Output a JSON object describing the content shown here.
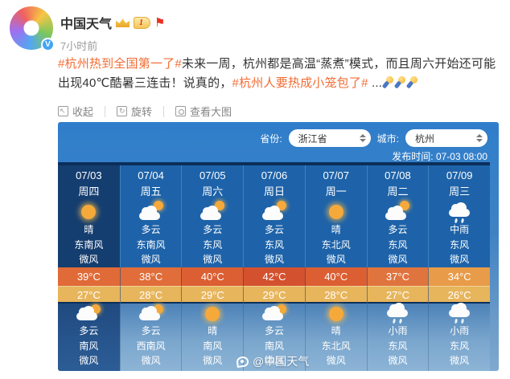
{
  "header": {
    "username": "中国天气",
    "vip_level": "1",
    "verified_mark": "V",
    "time": "7小时前"
  },
  "post": {
    "segments": [
      {
        "type": "link",
        "text": "#杭州热到全国第一了#"
      },
      {
        "type": "text",
        "text": "未来一周，杭州都是高温“蒸煮”模式，而且周六开始还可能出现40℃酷暑三连击！说真的，"
      },
      {
        "type": "link",
        "text": "#杭州人要热成小笼包了#"
      },
      {
        "type": "text",
        "text": " ..."
      }
    ],
    "emoji_icons": [
      "mic-emoji",
      "mic-emoji",
      "mic-emoji"
    ]
  },
  "toolbar": {
    "collapse": "收起",
    "rotate": "旋转",
    "view_large": "查看大图"
  },
  "weather_card": {
    "province_label": "省份:",
    "province_value": "浙江省",
    "city_label": "城市:",
    "city_value": "杭州",
    "publish_label": "发布时间:",
    "publish_time": "07-03 08:00",
    "watermark": "@中国天气",
    "low_color": "#e7b55c",
    "days": [
      {
        "date": "07/03",
        "weekday": "周四",
        "day_icon": "sun",
        "day_cond": "晴",
        "day_wind": "东南风",
        "day_wind_level": "微风",
        "high": "39°C",
        "low": "27°C",
        "high_color": "#e06a38",
        "night_icon": "cloudy",
        "night_cond": "多云",
        "night_wind": "南风",
        "night_wind_level": "微风"
      },
      {
        "date": "07/04",
        "weekday": "周五",
        "day_icon": "cloudy",
        "day_cond": "多云",
        "day_wind": "东南风",
        "day_wind_level": "微风",
        "high": "38°C",
        "low": "28°C",
        "high_color": "#e06d3a",
        "night_icon": "cloudy",
        "night_cond": "多云",
        "night_wind": "西南风",
        "night_wind_level": "微风"
      },
      {
        "date": "07/05",
        "weekday": "周六",
        "day_icon": "cloudy",
        "day_cond": "多云",
        "day_wind": "东风",
        "day_wind_level": "微风",
        "high": "40°C",
        "low": "29°C",
        "high_color": "#dc5e33",
        "night_icon": "sun",
        "night_cond": "晴",
        "night_wind": "南风",
        "night_wind_level": "微风"
      },
      {
        "date": "07/06",
        "weekday": "周日",
        "day_icon": "cloudy",
        "day_cond": "多云",
        "day_wind": "东风",
        "day_wind_level": "微风",
        "high": "42°C",
        "low": "29°C",
        "high_color": "#d4512f",
        "night_icon": "cloudy",
        "night_cond": "多云",
        "night_wind": "南风",
        "night_wind_level": "微风"
      },
      {
        "date": "07/07",
        "weekday": "周一",
        "day_icon": "sun",
        "day_cond": "晴",
        "day_wind": "东北风",
        "day_wind_level": "微风",
        "high": "40°C",
        "low": "28°C",
        "high_color": "#dc5e33",
        "night_icon": "sun",
        "night_cond": "晴",
        "night_wind": "东北风",
        "night_wind_level": "微风"
      },
      {
        "date": "07/08",
        "weekday": "周二",
        "day_icon": "cloudy",
        "day_cond": "多云",
        "day_wind": "东风",
        "day_wind_level": "微风",
        "high": "37°C",
        "low": "27°C",
        "high_color": "#e0743e",
        "night_icon": "rain",
        "night_cond": "小雨",
        "night_wind": "东风",
        "night_wind_level": "微风"
      },
      {
        "date": "07/09",
        "weekday": "周三",
        "day_icon": "rain",
        "day_cond": "中雨",
        "day_wind": "东风",
        "day_wind_level": "微风",
        "high": "34°C",
        "low": "26°C",
        "high_color": "#e89b48",
        "night_icon": "rain",
        "night_cond": "小雨",
        "night_wind": "东风",
        "night_wind_level": "微风"
      }
    ]
  },
  "colors": {
    "link": "#f26c34",
    "day_section_bg": "#1e63a9",
    "today_bg": "#153e70",
    "top_strip": "#0b2f5b"
  }
}
